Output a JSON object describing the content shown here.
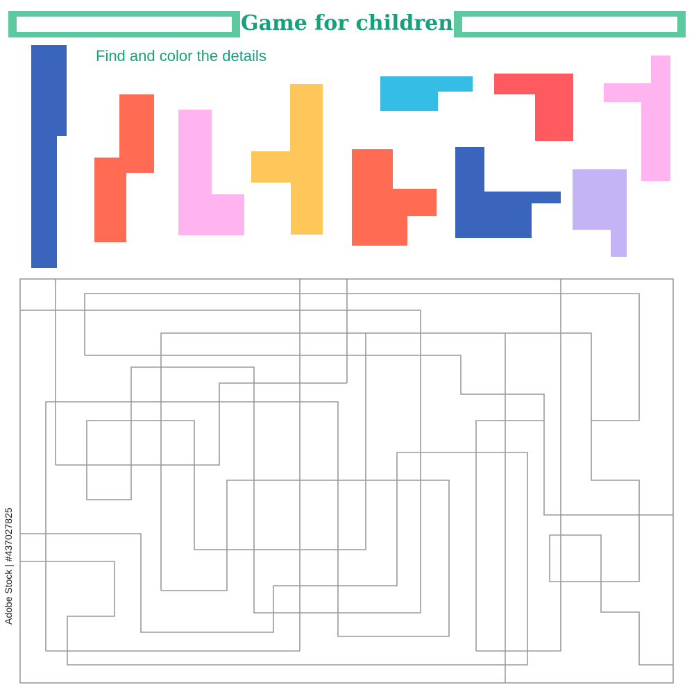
{
  "header": {
    "title": "Game for children",
    "instruction": "Find and color the details",
    "banner_color": "#5cc9a0",
    "text_color": "#17a07a"
  },
  "credit": "Adobe Stock | #437027825",
  "pieces": [
    {
      "name": "piece-blue-long",
      "color": "#3b65bd"
    },
    {
      "name": "piece-orange-zigzag",
      "color": "#ff6b53"
    },
    {
      "name": "piece-pink-l",
      "color": "#ffb3ef"
    },
    {
      "name": "piece-yellow-t",
      "color": "#ffc75a"
    },
    {
      "name": "piece-orange-step",
      "color": "#ff6b53"
    },
    {
      "name": "piece-cyan-bar",
      "color": "#35bde6"
    },
    {
      "name": "piece-blue-l",
      "color": "#3b65bd"
    },
    {
      "name": "piece-red-corner",
      "color": "#ff5a5f"
    },
    {
      "name": "piece-lavender-block",
      "color": "#c4b3f5"
    },
    {
      "name": "piece-pink-hook",
      "color": "#ffb3ef"
    }
  ],
  "maze_color": "#9a9a9a"
}
